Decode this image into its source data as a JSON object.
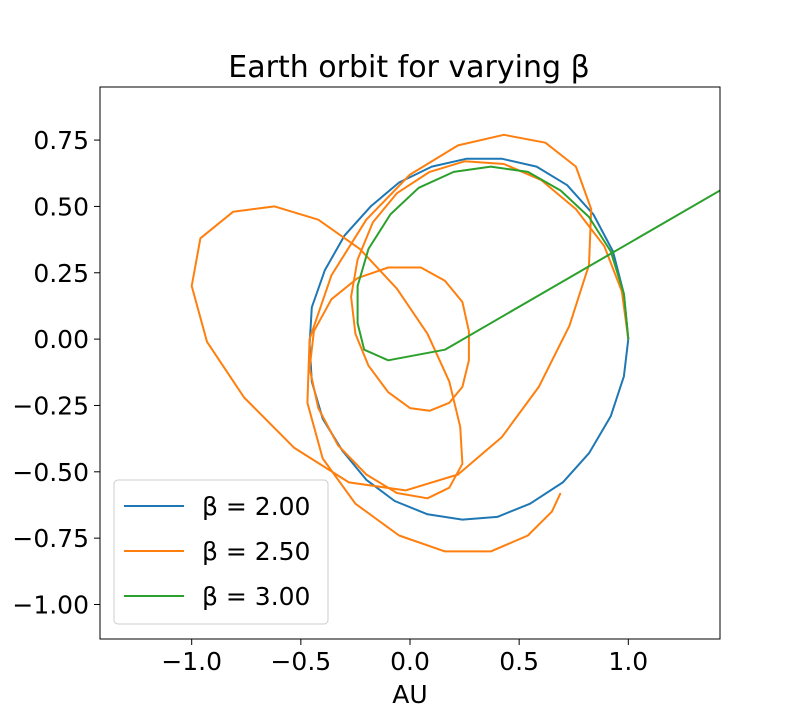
{
  "chart_data": {
    "type": "line",
    "title": "Earth orbit for varying β",
    "xlabel": "AU",
    "ylabel": "",
    "xlim": [
      -1.42,
      1.42
    ],
    "ylim": [
      -1.13,
      0.95
    ],
    "x_ticks": [
      -1.0,
      -0.5,
      0.0,
      0.5,
      1.0
    ],
    "x_tick_labels": [
      "−1.0",
      "−0.5",
      "0.0",
      "0.5",
      "1.0"
    ],
    "y_ticks": [
      0.75,
      0.5,
      0.25,
      0.0,
      -0.25,
      -0.5,
      -0.75,
      -1.0
    ],
    "y_tick_labels": [
      "0.75",
      "0.50",
      "0.25",
      "0.00",
      "−0.25",
      "−0.50",
      "−0.75",
      "−1.00"
    ],
    "grid": false,
    "legend_position": "lower-left",
    "series": [
      {
        "name": "β = 2.00",
        "color": "#1f77b4",
        "x": [
          1.0,
          0.98,
          0.93,
          0.84,
          0.72,
          0.58,
          0.42,
          0.26,
          0.1,
          -0.05,
          -0.18,
          -0.3,
          -0.39,
          -0.45,
          -0.46,
          -0.45,
          -0.4,
          -0.31,
          -0.2,
          -0.07,
          0.08,
          0.24,
          0.4,
          0.55,
          0.7,
          0.82,
          0.92,
          0.98,
          1.0
        ],
        "y": [
          0.0,
          0.17,
          0.33,
          0.47,
          0.58,
          0.65,
          0.68,
          0.68,
          0.65,
          0.59,
          0.5,
          0.39,
          0.26,
          0.12,
          -0.02,
          -0.16,
          -0.3,
          -0.42,
          -0.53,
          -0.61,
          -0.66,
          -0.68,
          -0.67,
          -0.62,
          -0.54,
          -0.43,
          -0.29,
          -0.14,
          0.0
        ]
      },
      {
        "name": "β = 2.50",
        "color": "#ff7f0e",
        "x": [
          1.0,
          0.97,
          0.89,
          0.76,
          0.6,
          0.43,
          0.25,
          0.09,
          -0.06,
          -0.17,
          -0.24,
          -0.27,
          -0.25,
          -0.19,
          -0.1,
          0.0,
          0.09,
          0.18,
          0.24,
          0.27,
          0.27,
          0.24,
          0.16,
          0.05,
          -0.1,
          -0.24,
          -0.36,
          -0.44,
          -0.46,
          -0.42,
          -0.33,
          -0.2,
          -0.06,
          0.08,
          0.18,
          0.24,
          0.23,
          0.18,
          0.08,
          -0.06,
          -0.23,
          -0.42,
          -0.62,
          -0.81,
          -0.96,
          -1.0,
          -0.93,
          -0.76,
          -0.53,
          -0.28,
          -0.02,
          0.22,
          0.42,
          0.59,
          0.73,
          0.82,
          0.83,
          0.76,
          0.62,
          0.43,
          0.22,
          0.0,
          -0.2,
          -0.36,
          -0.46,
          -0.47,
          -0.4,
          -0.25,
          -0.05,
          0.16,
          0.37,
          0.54,
          0.65,
          0.69
        ],
        "y": [
          0.0,
          0.18,
          0.35,
          0.49,
          0.6,
          0.66,
          0.67,
          0.63,
          0.55,
          0.44,
          0.3,
          0.16,
          0.02,
          -0.1,
          -0.2,
          -0.26,
          -0.27,
          -0.24,
          -0.18,
          -0.08,
          0.03,
          0.14,
          0.22,
          0.27,
          0.27,
          0.23,
          0.15,
          0.03,
          -0.11,
          -0.26,
          -0.4,
          -0.51,
          -0.58,
          -0.6,
          -0.56,
          -0.47,
          -0.33,
          -0.16,
          0.02,
          0.19,
          0.34,
          0.45,
          0.5,
          0.48,
          0.38,
          0.2,
          -0.01,
          -0.22,
          -0.41,
          -0.54,
          -0.57,
          -0.51,
          -0.37,
          -0.18,
          0.05,
          0.28,
          0.49,
          0.65,
          0.74,
          0.77,
          0.73,
          0.62,
          0.45,
          0.24,
          0.0,
          -0.24,
          -0.45,
          -0.62,
          -0.74,
          -0.8,
          -0.8,
          -0.74,
          -0.65,
          -0.58
        ]
      },
      {
        "name": "β = 3.00",
        "color": "#2ca02c",
        "x": [
          1.0,
          0.98,
          0.92,
          0.82,
          0.69,
          0.54,
          0.37,
          0.2,
          0.04,
          -0.09,
          -0.19,
          -0.24,
          -0.24,
          -0.21,
          -0.1,
          0.16,
          1.42
        ],
        "y": [
          0.0,
          0.17,
          0.33,
          0.46,
          0.56,
          0.63,
          0.65,
          0.63,
          0.57,
          0.47,
          0.34,
          0.2,
          0.06,
          -0.04,
          -0.08,
          -0.04,
          0.56
        ]
      }
    ]
  }
}
